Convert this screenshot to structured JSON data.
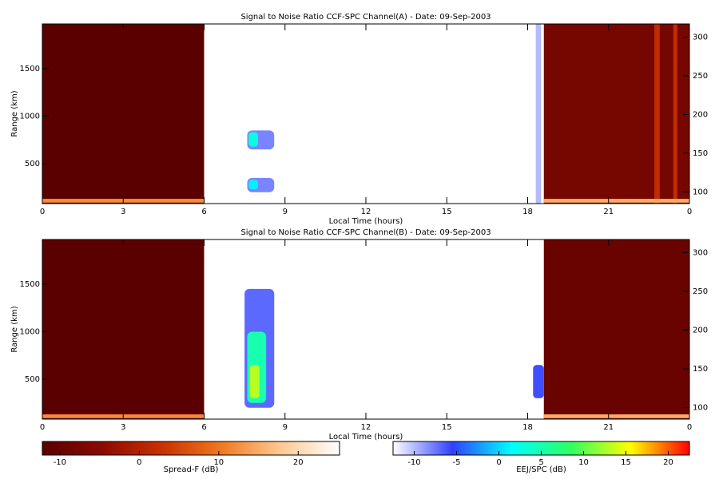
{
  "chart_data": [
    {
      "type": "heatmap",
      "title": "Signal to Noise Ratio CCF-SPC Channel(A) - Date: 09-Sep-2003",
      "x_label": "Local Time (hours)",
      "y_label": "Range (km)",
      "xlim": [
        0,
        24
      ],
      "xticks": [
        0,
        3,
        6,
        9,
        12,
        15,
        18,
        21,
        {
          "value": 24,
          "label": "0"
        }
      ],
      "ylim": [
        80,
        1970
      ],
      "yticks": [
        500,
        1000,
        1500
      ],
      "y2lim": [
        85,
        317
      ],
      "y2ticks": [
        100,
        150,
        200,
        250,
        300
      ],
      "blocks": [
        {
          "time": [
            0,
            6
          ],
          "range": [
            80,
            1970
          ],
          "value": -12
        },
        {
          "time": [
            0,
            6
          ],
          "range": [
            90,
            130
          ],
          "value": 12
        },
        {
          "time": [
            18.6,
            24
          ],
          "range": [
            80,
            1970
          ],
          "value": -8
        },
        {
          "time": [
            22.7,
            22.9
          ],
          "range": [
            80,
            1970
          ],
          "value": 2
        },
        {
          "time": [
            23.4,
            23.55
          ],
          "range": [
            80,
            1970
          ],
          "value": 2
        },
        {
          "time": [
            18.6,
            24
          ],
          "range": [
            90,
            130
          ],
          "value": 15
        }
      ],
      "echoes": [
        {
          "time": [
            7.6,
            8.6
          ],
          "range": [
            650,
            850
          ],
          "value": -8
        },
        {
          "time": [
            7.6,
            8.6
          ],
          "range": [
            200,
            350
          ],
          "value": -8
        },
        {
          "time": [
            7.65,
            8.0
          ],
          "range": [
            680,
            830
          ],
          "value": 3
        },
        {
          "time": [
            7.65,
            8.0
          ],
          "range": [
            230,
            330
          ],
          "value": 1
        },
        {
          "time": [
            18.3,
            18.5
          ],
          "range": [
            80,
            1970
          ],
          "value": -10
        }
      ]
    },
    {
      "type": "heatmap",
      "title": "Signal to Noise Ratio CCF-SPC Channel(B) - Date: 09-Sep-2003",
      "x_label": "Local Time (hours)",
      "y_label": "Range (km)",
      "xlim": [
        0,
        24
      ],
      "xticks": [
        0,
        3,
        6,
        9,
        12,
        15,
        18,
        21,
        {
          "value": 24,
          "label": "0"
        }
      ],
      "ylim": [
        80,
        1970
      ],
      "yticks": [
        500,
        1000,
        1500
      ],
      "y2lim": [
        85,
        317
      ],
      "y2ticks": [
        100,
        150,
        200,
        250,
        300
      ],
      "blocks": [
        {
          "time": [
            0,
            6
          ],
          "range": [
            80,
            1970
          ],
          "value": -12
        },
        {
          "time": [
            0,
            6
          ],
          "range": [
            90,
            130
          ],
          "value": 12
        },
        {
          "time": [
            18.6,
            24
          ],
          "range": [
            80,
            1970
          ],
          "value": -10
        },
        {
          "time": [
            18.6,
            24
          ],
          "range": [
            90,
            130
          ],
          "value": 15
        }
      ],
      "echoes": [
        {
          "time": [
            7.5,
            8.6
          ],
          "range": [
            200,
            1450
          ],
          "value": -7
        },
        {
          "time": [
            7.6,
            8.3
          ],
          "range": [
            250,
            1000
          ],
          "value": 5
        },
        {
          "time": [
            7.7,
            8.05
          ],
          "range": [
            300,
            650
          ],
          "value": 13
        },
        {
          "time": [
            18.2,
            18.6
          ],
          "range": [
            300,
            650
          ],
          "value": -6
        }
      ]
    }
  ],
  "colorbars": [
    {
      "label": "Spread-F (dB)",
      "lim": [
        -12.2,
        25.2
      ],
      "ticks": [
        -10,
        0,
        10,
        20
      ],
      "colors": [
        "#5a0000",
        "#8a0a00",
        "#c83000",
        "#f07820",
        "#ffc890",
        "#ffffff"
      ]
    },
    {
      "label": "EEJ/SPC (dB)",
      "lim": [
        -12.5,
        22.5
      ],
      "ticks": [
        -10,
        -5,
        0,
        5,
        10,
        15,
        20
      ],
      "colors": [
        "#ffffff",
        "#3040ff",
        "#00ffff",
        "#30ff60",
        "#ffff00",
        "#ff0000"
      ]
    }
  ]
}
